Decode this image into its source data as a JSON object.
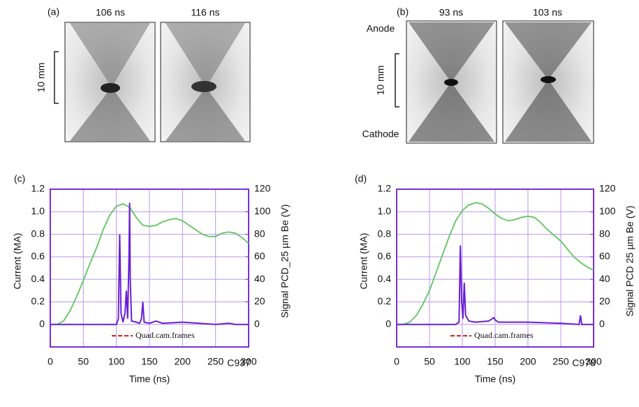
{
  "image_panels": [
    {
      "label": "(a)",
      "frames": [
        "106 ns",
        "116 ns"
      ],
      "scale": "10 mm"
    },
    {
      "label": "(b)",
      "frames": [
        "93 ns",
        "103 ns"
      ],
      "scale": "10 mm",
      "top": "Anode",
      "bottom": "Cathode"
    }
  ],
  "chart_data": [
    {
      "type": "line",
      "panel_label": "(c)",
      "xlabel": "Time (ns)",
      "ylabel": "Current (MA)",
      "y2label": "Signal PCD_25 µm Be (V)",
      "annotations": [
        "Quad.cam.frames",
        "C937"
      ],
      "xlim": [
        0,
        300
      ],
      "ylim": [
        -0.2,
        1.2
      ],
      "y2lim": [
        -20,
        120
      ],
      "xticks": [
        0,
        50,
        100,
        150,
        200,
        250,
        300
      ],
      "yticks": [
        0,
        0.2,
        0.4,
        0.6,
        0.8,
        {
          "value": 1,
          "label": "1.0"
        },
        1.2
      ],
      "y2ticks": [
        0,
        20,
        40,
        60,
        80,
        100,
        120
      ],
      "grid": true,
      "series": [
        {
          "color": "#5cc65c",
          "x": [
            0,
            10,
            20,
            30,
            40,
            50,
            60,
            70,
            80,
            90,
            100,
            110,
            120,
            130,
            140,
            150,
            160,
            170,
            180,
            190,
            200,
            210,
            220,
            230,
            240,
            250,
            260,
            270,
            280,
            290,
            300
          ],
          "values": [
            0,
            0,
            0.03,
            0.12,
            0.25,
            0.39,
            0.54,
            0.68,
            0.84,
            0.97,
            1.05,
            1.07,
            1.04,
            0.95,
            0.88,
            0.87,
            0.88,
            0.91,
            0.93,
            0.94,
            0.92,
            0.88,
            0.84,
            0.8,
            0.78,
            0.78,
            0.81,
            0.82,
            0.81,
            0.77,
            0.72
          ]
        },
        {
          "color": "#6a1fd6",
          "axis": "y2",
          "x": [
            0,
            20,
            40,
            60,
            80,
            95,
            100,
            103,
            105,
            107,
            110,
            113,
            115,
            117,
            119,
            120,
            121,
            123,
            130,
            135,
            138,
            140,
            142,
            150,
            160,
            170,
            200,
            250,
            270,
            280,
            300
          ],
          "values": [
            0,
            0,
            0,
            0,
            0,
            0,
            0,
            5,
            80,
            10,
            2,
            10,
            30,
            5,
            60,
            108,
            40,
            3,
            2,
            1,
            5,
            20,
            2,
            1,
            3,
            1,
            2,
            0,
            1,
            0,
            0
          ]
        }
      ]
    },
    {
      "type": "line",
      "panel_label": "(d)",
      "xlabel": "Time (ns)",
      "ylabel": "Current (MA)",
      "y2label": "Signal PCD  25 µm Be (V)",
      "annotations": [
        "Quad.cam.frames",
        "C978"
      ],
      "xlim": [
        0,
        300
      ],
      "ylim": [
        -0.2,
        1.2
      ],
      "y2lim": [
        -20,
        120
      ],
      "xticks": [
        0,
        50,
        100,
        150,
        200,
        250,
        300
      ],
      "yticks": [
        0,
        0.2,
        0.4,
        0.6,
        0.8,
        {
          "value": 1,
          "label": "1.0"
        },
        1.2
      ],
      "y2ticks": [
        0,
        20,
        40,
        60,
        80,
        100,
        120
      ],
      "grid": true,
      "series": [
        {
          "color": "#5cc65c",
          "x": [
            0,
            10,
            20,
            30,
            40,
            50,
            60,
            70,
            80,
            90,
            100,
            110,
            120,
            130,
            140,
            150,
            160,
            170,
            180,
            190,
            200,
            210,
            220,
            230,
            240,
            250,
            260,
            270,
            280,
            290,
            300
          ],
          "values": [
            0,
            0,
            0.02,
            0.08,
            0.18,
            0.3,
            0.46,
            0.62,
            0.78,
            0.92,
            1.01,
            1.06,
            1.08,
            1.07,
            1.03,
            0.98,
            0.94,
            0.92,
            0.93,
            0.95,
            0.96,
            0.95,
            0.9,
            0.84,
            0.79,
            0.74,
            0.67,
            0.6,
            0.55,
            0.51,
            0.48
          ]
        },
        {
          "color": "#6a1fd6",
          "axis": "y2",
          "x": [
            0,
            50,
            90,
            95,
            97,
            99,
            101,
            103,
            105,
            110,
            120,
            140,
            148,
            150,
            155,
            200,
            250,
            278,
            280,
            282,
            300
          ],
          "values": [
            0,
            0,
            0,
            2,
            70,
            20,
            5,
            37,
            8,
            3,
            2,
            3,
            6,
            4,
            2,
            2,
            1,
            0,
            8,
            0,
            0
          ]
        }
      ]
    }
  ]
}
